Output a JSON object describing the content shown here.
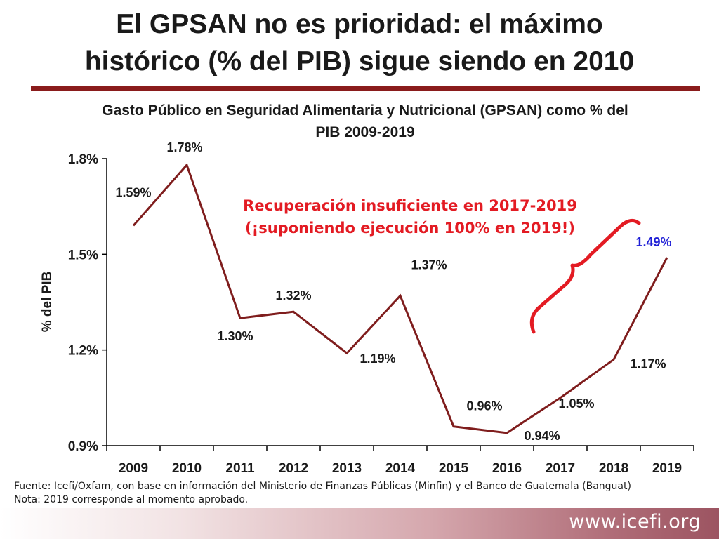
{
  "slide": {
    "title_line1": "El GPSAN no es prioridad: el máximo",
    "title_line2": "histórico (% del PIB) sigue siendo en 2010",
    "chart_title_line1": "Gasto Público en Seguridad Alimentaria y Nutricional (GPSAN) como % del",
    "chart_title_line2": "PIB 2009-2019",
    "footer_line1": "Fuente: Icefi/Oxfam, con base en información del Ministerio de Finanzas Públicas (Minfin) y el Banco de Guatemala (Banguat)",
    "footer_line2": "Nota: 2019 corresponde al momento aprobado.",
    "website": "www.icefi.org"
  },
  "colors": {
    "line": "#7f1d1d",
    "annotation": "#e31b23",
    "highlight_label": "#1f1fd6",
    "text": "#1a1a1a"
  },
  "chart_data": {
    "type": "line",
    "title": "Gasto Público en Seguridad Alimentaria y Nutricional (GPSAN) como % del PIB 2009-2019",
    "xlabel": "",
    "ylabel": "% del PIB",
    "ylim": [
      0.9,
      1.8
    ],
    "yticks": [
      0.9,
      1.2,
      1.5,
      1.8
    ],
    "ytick_labels": [
      "0.9%",
      "1.2%",
      "1.5%",
      "1.8%"
    ],
    "categories": [
      "2009",
      "2010",
      "2011",
      "2012",
      "2013",
      "2014",
      "2015",
      "2016",
      "2017",
      "2018",
      "2019"
    ],
    "series": [
      {
        "name": "GPSAN % del PIB",
        "values": [
          1.59,
          1.78,
          1.3,
          1.32,
          1.19,
          1.37,
          0.96,
          0.94,
          1.05,
          1.17,
          1.49
        ],
        "labels": [
          "1.59%",
          "1.78%",
          "1.30%",
          "1.32%",
          "1.19%",
          "1.37%",
          "0.96%",
          "0.94%",
          "1.05%",
          "1.17%",
          "1.49%"
        ]
      }
    ],
    "annotation_line1": "Recuperación insuficiente en 2017-2019",
    "annotation_line2": "(¡suponiendo ejecución 100% en 2019!)"
  }
}
